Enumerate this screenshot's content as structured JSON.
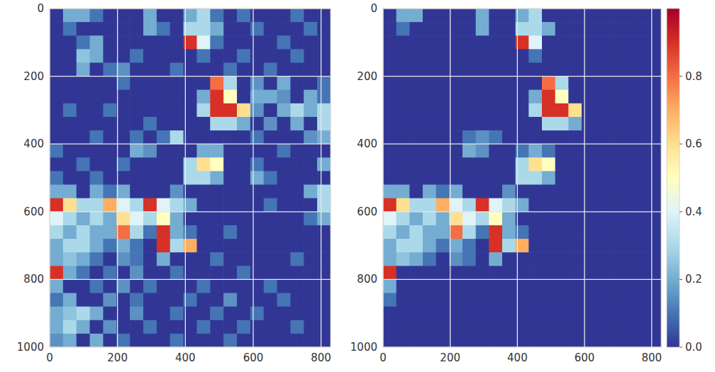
{
  "chart_data": [
    {
      "type": "heatmap",
      "xlim": [
        0,
        828
      ],
      "ylim": [
        1000,
        0
      ],
      "xticks": [
        0,
        200,
        400,
        600,
        800
      ],
      "yticks": [
        0,
        200,
        400,
        600,
        800,
        1000
      ],
      "grid": true,
      "color_range": [
        0,
        1
      ],
      "cells": [
        [
          0,
          0.2,
          0.2,
          0.1,
          0,
          0,
          0,
          0.2,
          0,
          0,
          0.2,
          0.3,
          0.1,
          0,
          0.1,
          0,
          0,
          0,
          0.1,
          0,
          0
        ],
        [
          0,
          0.1,
          0,
          0,
          0,
          0,
          0,
          0.2,
          0.1,
          0,
          0.3,
          0.3,
          0.2,
          0,
          0,
          0.1,
          0,
          0,
          0,
          0.1,
          0
        ],
        [
          0,
          0,
          0.1,
          0.2,
          0,
          0,
          0,
          0,
          0,
          0,
          0.9,
          0.4,
          0.1,
          0,
          0,
          0,
          0,
          0.1,
          0,
          0,
          0
        ],
        [
          0,
          0,
          0.25,
          0.2,
          0,
          0,
          0.1,
          0,
          0,
          0,
          0,
          0.1,
          0,
          0,
          0.1,
          0,
          0,
          0,
          0.1,
          0,
          0
        ],
        [
          0,
          0,
          0.2,
          0,
          0.1,
          0.15,
          0,
          0,
          0,
          0.1,
          0,
          0,
          0,
          0.1,
          0,
          0,
          0.1,
          0,
          0,
          0,
          0
        ],
        [
          0,
          0,
          0,
          0,
          0,
          0.1,
          0,
          0,
          0,
          0,
          0,
          0,
          0.8,
          0.3,
          0,
          0.15,
          0,
          0.2,
          0,
          0,
          0.1
        ],
        [
          0,
          0,
          0,
          0,
          0,
          0,
          0,
          0,
          0,
          0,
          0,
          0.2,
          0.9,
          0.5,
          0,
          0.2,
          0.2,
          0.15,
          0,
          0.2,
          0.1
        ],
        [
          0,
          0.1,
          0,
          0,
          0.1,
          0,
          0,
          0,
          0,
          0,
          0,
          0.3,
          0.9,
          0.9,
          0.6,
          0.15,
          0,
          0.2,
          0.3,
          0.2,
          0.3
        ],
        [
          0,
          0,
          0,
          0,
          0,
          0,
          0,
          0.1,
          0,
          0,
          0,
          0,
          0.3,
          0.3,
          0.2,
          0,
          0.15,
          0,
          0.2,
          0,
          0.3
        ],
        [
          0,
          0,
          0,
          0.1,
          0,
          0,
          0.1,
          0,
          0.1,
          0.3,
          0,
          0,
          0,
          0,
          0,
          0.1,
          0,
          0,
          0,
          0.15,
          0.2
        ],
        [
          0.1,
          0,
          0,
          0,
          0,
          0,
          0.2,
          0.15,
          0,
          0,
          0,
          0.2,
          0.2,
          0,
          0,
          0,
          0,
          0.1,
          0,
          0,
          0
        ],
        [
          0,
          0,
          0.1,
          0,
          0,
          0.1,
          0,
          0,
          0,
          0,
          0.3,
          0.6,
          0.5,
          0,
          0,
          0.1,
          0,
          0,
          0,
          0,
          0.2
        ],
        [
          0.1,
          0,
          0,
          0.1,
          0,
          0,
          0,
          0,
          0,
          0,
          0.3,
          0.3,
          0.2,
          0,
          0,
          0.2,
          0.1,
          0,
          0,
          0,
          0
        ],
        [
          0.2,
          0.2,
          0,
          0.2,
          0.1,
          0.2,
          0,
          0,
          0,
          0.15,
          0,
          0,
          0,
          0,
          0,
          0,
          0,
          0,
          0,
          0.2,
          0.3
        ],
        [
          0.9,
          0.6,
          0.3,
          0.3,
          0.7,
          0.4,
          0.3,
          0.9,
          0.4,
          0.3,
          0.2,
          0,
          0,
          0,
          0,
          0,
          0.1,
          0,
          0,
          0,
          0.3
        ],
        [
          0.4,
          0.3,
          0.2,
          0.3,
          0.2,
          0.6,
          0.4,
          0.3,
          0.5,
          0.2,
          0,
          0,
          0,
          0,
          0,
          0,
          0,
          0,
          0,
          0.1,
          0.2
        ],
        [
          0.3,
          0.2,
          0.3,
          0.2,
          0.2,
          0.8,
          0.3,
          0.1,
          0.9,
          0.2,
          0.1,
          0,
          0,
          0.1,
          0,
          0,
          0,
          0,
          0,
          0,
          0
        ],
        [
          0.2,
          0.3,
          0.3,
          0.2,
          0.1,
          0.2,
          0.1,
          0,
          0.9,
          0.3,
          0.7,
          0,
          0,
          0,
          0,
          0,
          0,
          0,
          0,
          0,
          0
        ],
        [
          0.2,
          0.25,
          0.2,
          0.1,
          0,
          0.15,
          0.1,
          0,
          0.2,
          0,
          0,
          0,
          0.1,
          0,
          0,
          0,
          0,
          0,
          0.1,
          0,
          0
        ],
        [
          0.9,
          0.2,
          0.1,
          0,
          0.1,
          0,
          0.15,
          0,
          0,
          0.1,
          0,
          0,
          0,
          0,
          0.1,
          0,
          0,
          0,
          0,
          0,
          0
        ],
        [
          0.2,
          0,
          0,
          0.1,
          0,
          0.15,
          0,
          0.1,
          0,
          0,
          0,
          0.1,
          0,
          0,
          0,
          0,
          0.1,
          0,
          0,
          0,
          0
        ],
        [
          0.1,
          0.2,
          0,
          0,
          0.15,
          0,
          0.1,
          0,
          0,
          0,
          0.1,
          0,
          0,
          0.15,
          0,
          0,
          0,
          0.1,
          0,
          0,
          0
        ],
        [
          0.2,
          0.25,
          0.3,
          0.2,
          0,
          0,
          0.15,
          0,
          0,
          0.1,
          0,
          0,
          0.1,
          0,
          0,
          0.1,
          0,
          0,
          0,
          0,
          0
        ],
        [
          0.2,
          0.3,
          0.2,
          0,
          0.15,
          0,
          0,
          0.1,
          0,
          0,
          0,
          0.1,
          0,
          0,
          0.1,
          0,
          0,
          0,
          0.1,
          0,
          0
        ],
        [
          0.15,
          0.2,
          0,
          0.2,
          0,
          0.1,
          0,
          0,
          0,
          0.1,
          0,
          0,
          0,
          0.1,
          0,
          0,
          0,
          0,
          0,
          0,
          0
        ]
      ]
    },
    {
      "type": "heatmap",
      "xlim": [
        0,
        828
      ],
      "ylim": [
        1000,
        0
      ],
      "xticks": [
        0,
        200,
        400,
        600,
        800
      ],
      "yticks": [
        0,
        200,
        400,
        600,
        800,
        1000
      ],
      "grid": true,
      "color_range": [
        0,
        1
      ],
      "colorbar_ticks": [
        {
          "value": 0,
          "label": "0.0"
        },
        0.2,
        0.4,
        0.6,
        0.8
      ],
      "cells": [
        [
          0,
          0.2,
          0.2,
          0,
          0,
          0,
          0,
          0.2,
          0,
          0,
          0.2,
          0.3,
          0,
          0,
          0,
          0,
          0,
          0,
          0,
          0,
          0
        ],
        [
          0,
          0.1,
          0,
          0,
          0,
          0,
          0,
          0.2,
          0,
          0,
          0.3,
          0.3,
          0.2,
          0,
          0,
          0,
          0,
          0,
          0,
          0,
          0
        ],
        [
          0,
          0,
          0,
          0,
          0,
          0,
          0,
          0,
          0,
          0,
          0.9,
          0.4,
          0,
          0,
          0,
          0,
          0,
          0,
          0,
          0,
          0
        ],
        [
          0,
          0,
          0,
          0,
          0,
          0,
          0,
          0,
          0,
          0,
          0,
          0.1,
          0,
          0,
          0,
          0,
          0,
          0,
          0,
          0,
          0
        ],
        [
          0,
          0,
          0,
          0,
          0,
          0,
          0,
          0,
          0,
          0,
          0,
          0,
          0,
          0,
          0,
          0,
          0,
          0,
          0,
          0,
          0
        ],
        [
          0,
          0,
          0,
          0,
          0,
          0,
          0,
          0,
          0,
          0,
          0,
          0,
          0.8,
          0.3,
          0,
          0,
          0,
          0,
          0,
          0,
          0
        ],
        [
          0,
          0,
          0,
          0,
          0,
          0,
          0,
          0,
          0,
          0,
          0,
          0.2,
          0.9,
          0.5,
          0,
          0,
          0,
          0,
          0,
          0,
          0
        ],
        [
          0,
          0,
          0,
          0,
          0,
          0,
          0,
          0,
          0,
          0,
          0,
          0.3,
          0.9,
          0.9,
          0.6,
          0,
          0,
          0,
          0,
          0,
          0
        ],
        [
          0,
          0,
          0,
          0,
          0,
          0,
          0,
          0,
          0,
          0,
          0,
          0,
          0.3,
          0.3,
          0.2,
          0,
          0,
          0,
          0,
          0,
          0
        ],
        [
          0,
          0,
          0,
          0,
          0,
          0,
          0.1,
          0.15,
          0.1,
          0,
          0,
          0,
          0,
          0,
          0,
          0,
          0,
          0,
          0,
          0,
          0
        ],
        [
          0,
          0,
          0,
          0,
          0,
          0,
          0.2,
          0.15,
          0,
          0,
          0.1,
          0.2,
          0.1,
          0,
          0,
          0,
          0,
          0,
          0,
          0,
          0
        ],
        [
          0,
          0,
          0,
          0,
          0,
          0,
          0,
          0,
          0,
          0,
          0.3,
          0.6,
          0.5,
          0,
          0,
          0,
          0,
          0,
          0,
          0,
          0
        ],
        [
          0,
          0,
          0,
          0,
          0,
          0,
          0,
          0,
          0,
          0,
          0.3,
          0.3,
          0.2,
          0,
          0,
          0,
          0,
          0,
          0,
          0,
          0
        ],
        [
          0.2,
          0.2,
          0,
          0.2,
          0.1,
          0.2,
          0,
          0,
          0,
          0.15,
          0,
          0,
          0,
          0,
          0,
          0,
          0,
          0,
          0,
          0,
          0
        ],
        [
          0.9,
          0.6,
          0.3,
          0.3,
          0.7,
          0.4,
          0.3,
          0.9,
          0.4,
          0.3,
          0.2,
          0,
          0,
          0,
          0,
          0,
          0,
          0,
          0,
          0,
          0
        ],
        [
          0.4,
          0.3,
          0.2,
          0.3,
          0.2,
          0.6,
          0.4,
          0.3,
          0.5,
          0.2,
          0,
          0,
          0,
          0,
          0,
          0,
          0,
          0,
          0,
          0,
          0
        ],
        [
          0.3,
          0.2,
          0.3,
          0.2,
          0.2,
          0.8,
          0.3,
          0.1,
          0.9,
          0.2,
          0.1,
          0,
          0,
          0,
          0,
          0,
          0,
          0,
          0,
          0,
          0
        ],
        [
          0.2,
          0.3,
          0.3,
          0.2,
          0.1,
          0.2,
          0.1,
          0,
          0.9,
          0.3,
          0.7,
          0,
          0,
          0,
          0,
          0,
          0,
          0,
          0,
          0,
          0
        ],
        [
          0.2,
          0.25,
          0.2,
          0.1,
          0,
          0.15,
          0.1,
          0,
          0.2,
          0,
          0,
          0,
          0,
          0,
          0,
          0,
          0,
          0,
          0,
          0,
          0
        ],
        [
          0.9,
          0,
          0,
          0,
          0,
          0,
          0,
          0,
          0,
          0,
          0,
          0,
          0,
          0,
          0,
          0,
          0,
          0,
          0,
          0,
          0
        ],
        [
          0.2,
          0,
          0,
          0,
          0,
          0,
          0,
          0,
          0,
          0,
          0,
          0,
          0,
          0,
          0,
          0,
          0,
          0,
          0,
          0,
          0
        ],
        [
          0.1,
          0,
          0,
          0,
          0,
          0,
          0,
          0,
          0,
          0,
          0,
          0,
          0,
          0,
          0,
          0,
          0,
          0,
          0,
          0,
          0
        ],
        [
          0,
          0,
          0,
          0,
          0,
          0,
          0,
          0,
          0,
          0,
          0,
          0,
          0,
          0,
          0,
          0,
          0,
          0,
          0,
          0,
          0
        ],
        [
          0,
          0,
          0,
          0,
          0,
          0,
          0,
          0,
          0,
          0,
          0,
          0,
          0,
          0,
          0,
          0,
          0,
          0,
          0,
          0,
          0
        ],
        [
          0,
          0,
          0,
          0,
          0,
          0,
          0,
          0,
          0,
          0,
          0,
          0,
          0,
          0,
          0,
          0,
          0,
          0,
          0,
          0,
          0
        ]
      ]
    }
  ]
}
